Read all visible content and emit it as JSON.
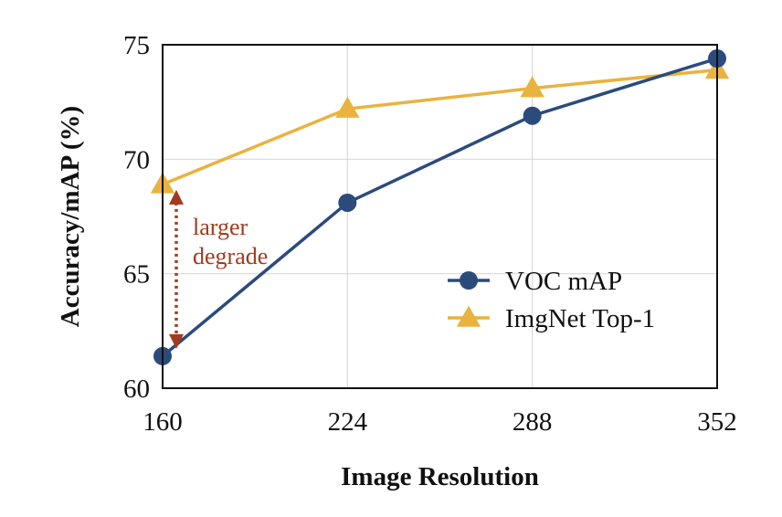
{
  "chart_data": {
    "type": "line",
    "x": [
      160,
      224,
      288,
      352
    ],
    "xlabel": "Image Resolution",
    "ylabel": "Accuracy/mAP (%)",
    "xticks": [
      "160",
      "224",
      "288",
      "352"
    ],
    "yticks": [
      "60",
      "65",
      "70",
      "75"
    ],
    "xlim": [
      160,
      352
    ],
    "ylim": [
      60,
      75
    ],
    "grid": true,
    "legend_position": "bottom-right",
    "series": [
      {
        "name": "VOC mAP",
        "values": [
          61.4,
          68.1,
          71.9,
          74.4
        ],
        "color": "#2b4b7c",
        "marker": "circle"
      },
      {
        "name": "ImgNet Top-1",
        "values": [
          68.9,
          72.2,
          73.1,
          73.9
        ],
        "color": "#e9b33f",
        "marker": "triangle"
      }
    ],
    "annotation": {
      "text_line1": "larger",
      "text_line2": "degrade",
      "x": 160,
      "y_from": 68.9,
      "y_to": 61.4,
      "color": "#a33a1d"
    }
  }
}
